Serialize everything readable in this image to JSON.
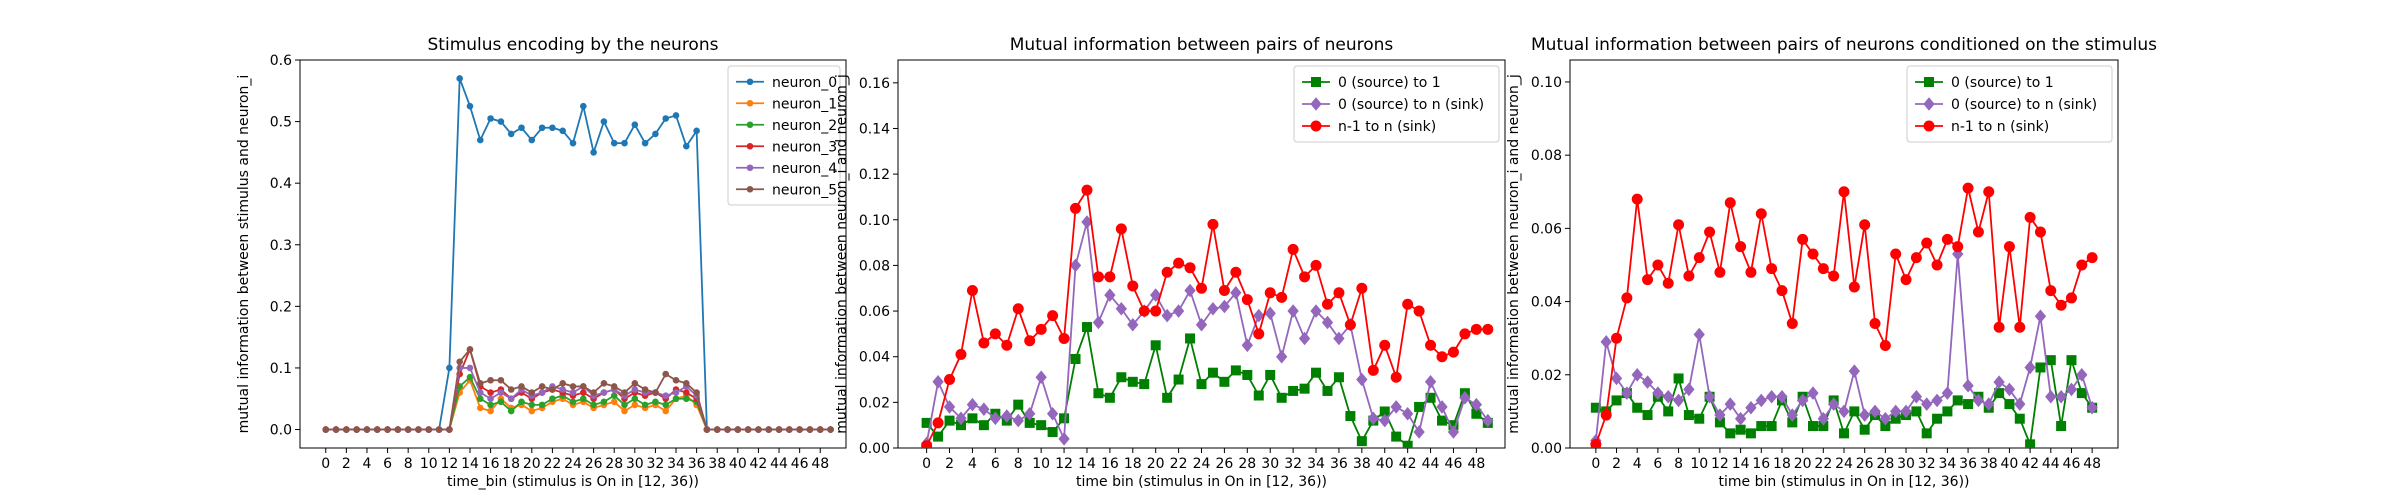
{
  "chart_data": [
    {
      "type": "line",
      "title": "Stimulus encoding by the neurons",
      "xlabel": "time_bin (stimulus is On in [12, 36))",
      "ylabel": "mutual information between stimulus and neuron_i",
      "xlim": [
        -2.5,
        50.5
      ],
      "ylim": [
        -0.03,
        0.6
      ],
      "xticks": [
        0,
        2,
        4,
        6,
        8,
        10,
        12,
        14,
        16,
        18,
        20,
        22,
        24,
        26,
        28,
        30,
        32,
        34,
        36,
        38,
        40,
        42,
        44,
        46,
        48
      ],
      "yticks": [
        0.0,
        0.1,
        0.2,
        0.3,
        0.4,
        0.5,
        0.6
      ],
      "ytick_labels": [
        "0.0",
        "0.1",
        "0.2",
        "0.3",
        "0.4",
        "0.5",
        "0.6"
      ],
      "legend_position": "upper-right",
      "x": [
        0,
        1,
        2,
        3,
        4,
        5,
        6,
        7,
        8,
        9,
        10,
        11,
        12,
        13,
        14,
        15,
        16,
        17,
        18,
        19,
        20,
        21,
        22,
        23,
        24,
        25,
        26,
        27,
        28,
        29,
        30,
        31,
        32,
        33,
        34,
        35,
        36,
        37,
        38,
        39,
        40,
        41,
        42,
        43,
        44,
        45,
        46,
        47,
        48,
        49
      ],
      "series": [
        {
          "name": "neuron_0",
          "color": "#1f77b4",
          "marker": "dot",
          "values": [
            0,
            0,
            0,
            0,
            0,
            0,
            0,
            0,
            0,
            0,
            0,
            0,
            0.1,
            0.57,
            0.525,
            0.47,
            0.505,
            0.5,
            0.48,
            0.49,
            0.47,
            0.49,
            0.49,
            0.485,
            0.465,
            0.525,
            0.45,
            0.5,
            0.465,
            0.465,
            0.495,
            0.465,
            0.48,
            0.505,
            0.51,
            0.46,
            0.485,
            0,
            0,
            0,
            0,
            0,
            0,
            0,
            0,
            0,
            0,
            0,
            0,
            0
          ]
        },
        {
          "name": "neuron_1",
          "color": "#ff7f0e",
          "marker": "dot",
          "values": [
            0,
            0,
            0,
            0,
            0,
            0,
            0,
            0,
            0,
            0,
            0,
            0,
            0,
            0.06,
            0.08,
            0.035,
            0.03,
            0.05,
            0.035,
            0.04,
            0.03,
            0.035,
            0.045,
            0.05,
            0.04,
            0.045,
            0.035,
            0.04,
            0.045,
            0.03,
            0.04,
            0.035,
            0.04,
            0.03,
            0.05,
            0.055,
            0.04,
            0,
            0,
            0,
            0,
            0,
            0,
            0,
            0,
            0,
            0,
            0,
            0,
            0
          ]
        },
        {
          "name": "neuron_2",
          "color": "#2ca02c",
          "marker": "dot",
          "values": [
            0,
            0,
            0,
            0,
            0,
            0,
            0,
            0,
            0,
            0,
            0,
            0,
            0,
            0.07,
            0.085,
            0.05,
            0.04,
            0.045,
            0.03,
            0.045,
            0.04,
            0.04,
            0.05,
            0.055,
            0.045,
            0.05,
            0.04,
            0.045,
            0.055,
            0.04,
            0.05,
            0.04,
            0.045,
            0.04,
            0.05,
            0.05,
            0.045,
            0,
            0,
            0,
            0,
            0,
            0,
            0,
            0,
            0,
            0,
            0,
            0,
            0
          ]
        },
        {
          "name": "neuron_3",
          "color": "#d62728",
          "marker": "dot",
          "values": [
            0,
            0,
            0,
            0,
            0,
            0,
            0,
            0,
            0,
            0,
            0,
            0,
            0,
            0.09,
            0.13,
            0.07,
            0.06,
            0.065,
            0.05,
            0.06,
            0.05,
            0.06,
            0.065,
            0.06,
            0.055,
            0.06,
            0.05,
            0.06,
            0.065,
            0.05,
            0.06,
            0.055,
            0.06,
            0.05,
            0.065,
            0.06,
            0.05,
            0,
            0,
            0,
            0,
            0,
            0,
            0,
            0,
            0,
            0,
            0,
            0,
            0
          ]
        },
        {
          "name": "neuron_4",
          "color": "#9467bd",
          "marker": "dot",
          "values": [
            0,
            0,
            0,
            0,
            0,
            0,
            0,
            0,
            0,
            0,
            0,
            0,
            0,
            0.1,
            0.1,
            0.06,
            0.05,
            0.06,
            0.05,
            0.065,
            0.055,
            0.06,
            0.07,
            0.065,
            0.06,
            0.07,
            0.055,
            0.06,
            0.065,
            0.055,
            0.065,
            0.06,
            0.06,
            0.055,
            0.06,
            0.07,
            0.055,
            0,
            0,
            0,
            0,
            0,
            0,
            0,
            0,
            0,
            0,
            0,
            0,
            0
          ]
        },
        {
          "name": "neuron_5",
          "color": "#8c564b",
          "marker": "dot",
          "values": [
            0,
            0,
            0,
            0,
            0,
            0,
            0,
            0,
            0,
            0,
            0,
            0,
            0,
            0.11,
            0.13,
            0.075,
            0.08,
            0.08,
            0.065,
            0.07,
            0.06,
            0.07,
            0.065,
            0.075,
            0.07,
            0.07,
            0.06,
            0.075,
            0.07,
            0.06,
            0.075,
            0.065,
            0.06,
            0.09,
            0.08,
            0.075,
            0.06,
            0,
            0,
            0,
            0,
            0,
            0,
            0,
            0,
            0,
            0,
            0,
            0,
            0
          ]
        }
      ]
    },
    {
      "type": "line",
      "title": "Mutual information between pairs of neurons",
      "xlabel": "time bin (stimulus in On in [12, 36))",
      "ylabel": "mutual information between neuron_i and neuron_j",
      "xlim": [
        -2.5,
        50.5
      ],
      "ylim": [
        0,
        0.17
      ],
      "xticks": [
        0,
        2,
        4,
        6,
        8,
        10,
        12,
        14,
        16,
        18,
        20,
        22,
        24,
        26,
        28,
        30,
        32,
        34,
        36,
        38,
        40,
        42,
        44,
        46,
        48
      ],
      "yticks": [
        0.0,
        0.02,
        0.04,
        0.06,
        0.08,
        0.1,
        0.12,
        0.14,
        0.16
      ],
      "ytick_labels": [
        "0.00",
        "0.02",
        "0.04",
        "0.06",
        "0.08",
        "0.10",
        "0.12",
        "0.14",
        "0.16"
      ],
      "legend_position": "upper-right",
      "x": [
        0,
        1,
        2,
        3,
        4,
        5,
        6,
        7,
        8,
        9,
        10,
        11,
        12,
        13,
        14,
        15,
        16,
        17,
        18,
        19,
        20,
        21,
        22,
        23,
        24,
        25,
        26,
        27,
        28,
        29,
        30,
        31,
        32,
        33,
        34,
        35,
        36,
        37,
        38,
        39,
        40,
        41,
        42,
        43,
        44,
        45,
        46,
        47,
        48,
        49
      ],
      "series": [
        {
          "name": "0 (source) to 1",
          "color": "#008000",
          "marker": "square",
          "values": [
            0.011,
            0.005,
            0.012,
            0.01,
            0.013,
            0.01,
            0.015,
            0.012,
            0.019,
            0.011,
            0.01,
            0.007,
            0.013,
            0.039,
            0.053,
            0.024,
            0.022,
            0.031,
            0.029,
            0.028,
            0.045,
            0.022,
            0.03,
            0.048,
            0.028,
            0.033,
            0.029,
            0.034,
            0.032,
            0.023,
            0.032,
            0.022,
            0.025,
            0.026,
            0.033,
            0.025,
            0.031,
            0.014,
            0.003,
            0.012,
            0.016,
            0.005,
            0.001,
            0.018,
            0.022,
            0.012,
            0.01,
            0.024,
            0.015,
            0.011
          ]
        },
        {
          "name": "0 (source) to n (sink)",
          "color": "#9467bd",
          "marker": "diamond",
          "values": [
            0.002,
            0.029,
            0.018,
            0.013,
            0.019,
            0.017,
            0.013,
            0.014,
            0.012,
            0.015,
            0.031,
            0.015,
            0.004,
            0.08,
            0.099,
            0.055,
            0.067,
            0.061,
            0.054,
            0.06,
            0.067,
            0.058,
            0.06,
            0.069,
            0.054,
            0.061,
            0.062,
            0.068,
            0.045,
            0.058,
            0.059,
            0.04,
            0.06,
            0.048,
            0.06,
            0.055,
            0.048,
            0.054,
            0.03,
            0.013,
            0.012,
            0.018,
            0.015,
            0.007,
            0.029,
            0.018,
            0.007,
            0.022,
            0.019,
            0.012
          ]
        },
        {
          "name": "n-1 to n (sink)",
          "color": "#ff0000",
          "marker": "circle",
          "values": [
            0.001,
            0.011,
            0.03,
            0.041,
            0.069,
            0.046,
            0.05,
            0.045,
            0.061,
            0.047,
            0.052,
            0.058,
            0.048,
            0.105,
            0.113,
            0.075,
            0.075,
            0.096,
            0.071,
            0.06,
            0.06,
            0.077,
            0.081,
            0.079,
            0.07,
            0.098,
            0.069,
            0.077,
            0.065,
            0.05,
            0.068,
            0.066,
            0.087,
            0.075,
            0.08,
            0.063,
            0.068,
            0.054,
            0.07,
            0.034,
            0.045,
            0.031,
            0.063,
            0.06,
            0.045,
            0.04,
            0.042,
            0.05,
            0.052,
            0.052
          ]
        }
      ]
    },
    {
      "type": "line",
      "title": "Mutual information between pairs of neurons conditioned on the stimulus",
      "xlabel": "time bin (stimulus in On in [12, 36))",
      "ylabel": "mutual information between neuron_i and neuron_j",
      "xlim": [
        -2.5,
        50.5
      ],
      "ylim": [
        0,
        0.106
      ],
      "xticks": [
        0,
        2,
        4,
        6,
        8,
        10,
        12,
        14,
        16,
        18,
        20,
        22,
        24,
        26,
        28,
        30,
        32,
        34,
        36,
        38,
        40,
        42,
        44,
        46,
        48
      ],
      "yticks": [
        0.0,
        0.02,
        0.04,
        0.06,
        0.08,
        0.1
      ],
      "ytick_labels": [
        "0.00",
        "0.02",
        "0.04",
        "0.06",
        "0.08",
        "0.10"
      ],
      "legend_position": "upper-right",
      "x": [
        0,
        1,
        2,
        3,
        4,
        5,
        6,
        7,
        8,
        9,
        10,
        11,
        12,
        13,
        14,
        15,
        16,
        17,
        18,
        19,
        20,
        21,
        22,
        23,
        24,
        25,
        26,
        27,
        28,
        29,
        30,
        31,
        32,
        33,
        34,
        35,
        36,
        37,
        38,
        39,
        40,
        41,
        42,
        43,
        44,
        45,
        46,
        47,
        48
      ],
      "series": [
        {
          "name": "0 (source) to 1",
          "color": "#008000",
          "marker": "square",
          "values": [
            0.011,
            0.01,
            0.013,
            0.015,
            0.011,
            0.009,
            0.014,
            0.01,
            0.019,
            0.009,
            0.008,
            0.014,
            0.007,
            0.004,
            0.005,
            0.004,
            0.006,
            0.006,
            0.013,
            0.007,
            0.014,
            0.006,
            0.006,
            0.013,
            0.004,
            0.01,
            0.005,
            0.009,
            0.006,
            0.008,
            0.009,
            0.01,
            0.004,
            0.008,
            0.01,
            0.013,
            0.012,
            0.014,
            0.011,
            0.015,
            0.012,
            0.008,
            0.001,
            0.022,
            0.024,
            0.006,
            0.024,
            0.015,
            0.011
          ]
        },
        {
          "name": "0 (source) to n (sink)",
          "color": "#9467bd",
          "marker": "diamond",
          "values": [
            0.002,
            0.029,
            0.019,
            0.015,
            0.02,
            0.018,
            0.015,
            0.014,
            0.013,
            0.016,
            0.031,
            0.014,
            0.009,
            0.012,
            0.008,
            0.011,
            0.013,
            0.014,
            0.014,
            0.009,
            0.013,
            0.015,
            0.008,
            0.012,
            0.01,
            0.021,
            0.009,
            0.01,
            0.008,
            0.01,
            0.01,
            0.014,
            0.012,
            0.013,
            0.015,
            0.053,
            0.017,
            0.013,
            0.012,
            0.018,
            0.016,
            0.012,
            0.022,
            0.036,
            0.014,
            0.014,
            0.016,
            0.02,
            0.011
          ]
        },
        {
          "name": "n-1 to n (sink)",
          "color": "#ff0000",
          "marker": "circle",
          "values": [
            0.001,
            0.009,
            0.03,
            0.041,
            0.068,
            0.046,
            0.05,
            0.045,
            0.061,
            0.047,
            0.052,
            0.059,
            0.048,
            0.067,
            0.055,
            0.048,
            0.064,
            0.049,
            0.043,
            0.034,
            0.057,
            0.053,
            0.049,
            0.047,
            0.07,
            0.044,
            0.061,
            0.034,
            0.028,
            0.053,
            0.046,
            0.052,
            0.056,
            0.05,
            0.057,
            0.055,
            0.071,
            0.059,
            0.07,
            0.033,
            0.055,
            0.033,
            0.063,
            0.059,
            0.043,
            0.039,
            0.041,
            0.05,
            0.052
          ]
        }
      ]
    }
  ]
}
